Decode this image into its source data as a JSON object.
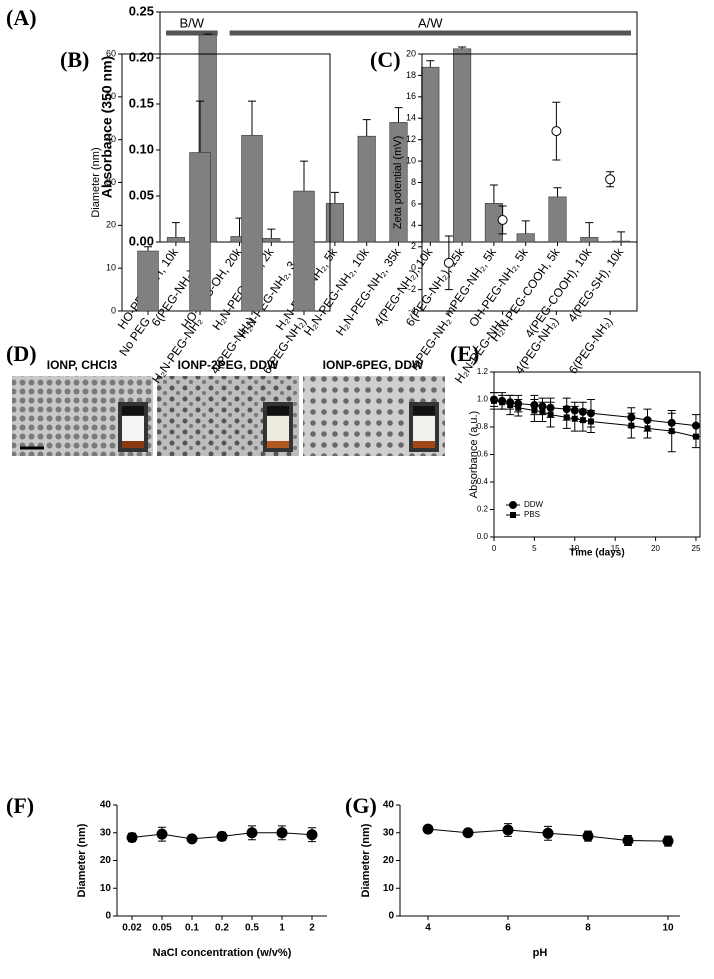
{
  "chart_data": [
    {
      "type": "bar",
      "label": "(A)",
      "y_label": "Absorbance (350 nm)",
      "annotations": [
        "B/W",
        "A/W"
      ],
      "color": "#808080",
      "categories": [
        "HO-PEG-OH, 10k",
        "6(PEG-NH₂), 15k",
        "HO-PEG-OH, 20k",
        "H₂N-PEG-NH₂, 2k",
        "H₂N-PEG-NH₂, 3.4k",
        "H₂N-PEG-NH₂, 5k",
        "H₂N-PEG-NH₂, 10k",
        "H₂N-PEG-NH₂, 35k",
        "4(PEG-NH₂), 10k",
        "6(PEG-NH₂), 15k",
        "mPEG-NH₂, 5k",
        "OH-PEG-NH₂, 5k",
        "H₂N-PEG-COOH, 5k",
        "4(PEG-COOH), 10k",
        "4(PEG-SH), 10k"
      ],
      "values": [
        0.005,
        0.225,
        0.006,
        0.004,
        0.005,
        0.042,
        0.115,
        0.13,
        0.19,
        0.21,
        0.042,
        0.009,
        0.049,
        0.005,
        0.001
      ],
      "errors": [
        0.016,
        0.001,
        0.02,
        0.01,
        0.016,
        0.012,
        0.018,
        0.016,
        0.007,
        0.002,
        0.02,
        0.014,
        0.01,
        0.016,
        0.01
      ],
      "ylim": [
        0,
        0.25
      ],
      "yticks": [
        {
          "value": 0,
          "label": "0.00"
        },
        {
          "value": 0.05,
          "label": "0.05"
        },
        {
          "value": 0.1,
          "label": "0.10"
        },
        {
          "value": 0.15,
          "label": "0.15"
        },
        {
          "value": 0.2,
          "label": "0.20"
        },
        {
          "value": 0.25,
          "label": "0.25"
        }
      ]
    },
    {
      "type": "bar",
      "label": "(B)",
      "y_label": "Diameter (nm)",
      "color": "#808080",
      "categories": [
        "No PEG",
        "H₂N-PEG-NH₂",
        "4(PEG-NH₂)",
        "6(PEG-NH₂)"
      ],
      "values": [
        14,
        37,
        41,
        28
      ],
      "errors": [
        1,
        12,
        8,
        7
      ],
      "ylim": [
        0,
        60
      ],
      "yticks": [
        0,
        10,
        20,
        30,
        40,
        50,
        60
      ]
    },
    {
      "type": "scatter",
      "label": "(C)",
      "y_label": "Zeta potential (mV)",
      "color": "#000000",
      "categories": [
        "mPEG-NH₂",
        "H₂N-PEG-NH₂",
        "4(PEG-NH₂)",
        "6(PEG-NH₂)"
      ],
      "values": [
        0.5,
        4.5,
        12.8,
        8.3
      ],
      "errors": [
        2.5,
        1.3,
        2.7,
        0.7
      ],
      "ylim": [
        -4,
        20
      ],
      "yticks": [
        -4,
        -2,
        0,
        2,
        4,
        6,
        8,
        10,
        12,
        14,
        16,
        18,
        20
      ]
    },
    {
      "type": "line",
      "label": "(E)",
      "x_label": "Time (days)",
      "y_label": "Absorbance (a.u.)",
      "legend": "lower left",
      "x": [
        0,
        1,
        2,
        3,
        5,
        6,
        7,
        9,
        10,
        11,
        12,
        17,
        19,
        22,
        25
      ],
      "series": [
        {
          "name": "DDW",
          "color": "#000000",
          "marker": "circle",
          "values": [
            1.0,
            0.99,
            0.98,
            0.97,
            0.96,
            0.95,
            0.94,
            0.93,
            0.92,
            0.91,
            0.9,
            0.87,
            0.85,
            0.83,
            0.81
          ],
          "errors": [
            0.05,
            0.06,
            0.05,
            0.06,
            0.07,
            0.06,
            0.07,
            0.08,
            0.06,
            0.07,
            0.1,
            0.07,
            0.08,
            0.07,
            0.08
          ]
        },
        {
          "name": "PBS",
          "color": "#000000",
          "marker": "square",
          "values": [
            0.99,
            0.98,
            0.96,
            0.94,
            0.92,
            0.91,
            0.89,
            0.87,
            0.86,
            0.85,
            0.84,
            0.81,
            0.79,
            0.77,
            0.73
          ],
          "errors": [
            0.06,
            0.05,
            0.07,
            0.06,
            0.08,
            0.07,
            0.09,
            0.08,
            0.09,
            0.08,
            0.08,
            0.09,
            0.07,
            0.15,
            0.08
          ]
        }
      ],
      "xlim": [
        0,
        25.5
      ],
      "xticks": [
        0,
        5,
        10,
        15,
        20,
        25
      ],
      "ylim": [
        0,
        1.2
      ],
      "yticks": [
        {
          "value": 0,
          "label": "0.0"
        },
        {
          "value": 0.2,
          "label": "0.2"
        },
        {
          "value": 0.4,
          "label": "0.4"
        },
        {
          "value": 0.6,
          "label": "0.6"
        },
        {
          "value": 0.8,
          "label": "0.8"
        },
        {
          "value": 1.0,
          "label": "1.0"
        },
        {
          "value": 1.2,
          "label": "1.2"
        }
      ]
    },
    {
      "type": "line",
      "label": "(F)",
      "x_label": "NaCl concentration (w/v%)",
      "y_label": "Diameter (nm)",
      "color": "#000000",
      "categories": [
        "0.02",
        "0.05",
        "0.1",
        "0.2",
        "0.5",
        "1",
        "2"
      ],
      "values": [
        28.3,
        29.5,
        27.8,
        28.7,
        30,
        30,
        29.3
      ],
      "errors": [
        1.5,
        2.5,
        0.8,
        1.5,
        2.5,
        2.5,
        2.5
      ],
      "ylim": [
        0,
        40
      ],
      "yticks": [
        0,
        10,
        20,
        30,
        40
      ]
    },
    {
      "type": "line",
      "label": "(G)",
      "x_label": "pH",
      "y_label": "Diameter (nm)",
      "color": "#000000",
      "x": [
        4,
        5,
        6,
        7,
        8,
        9,
        10
      ],
      "values": [
        31.3,
        30,
        31,
        29.8,
        28.8,
        27.2,
        27
      ],
      "errors": [
        1,
        0.5,
        2.3,
        2.5,
        1.8,
        1.8,
        1.8
      ],
      "xlim": [
        3.3,
        10.3
      ],
      "xticks": [
        4,
        6,
        8,
        10
      ],
      "ylim": [
        0,
        40
      ],
      "yticks": [
        0,
        10,
        20,
        30,
        40
      ]
    }
  ],
  "panel_d": {
    "label": "(D)",
    "captions": [
      "IONP, CHCl3",
      "IONP-2PEG, DDW",
      "IONP-6PEG, DDW"
    ]
  }
}
